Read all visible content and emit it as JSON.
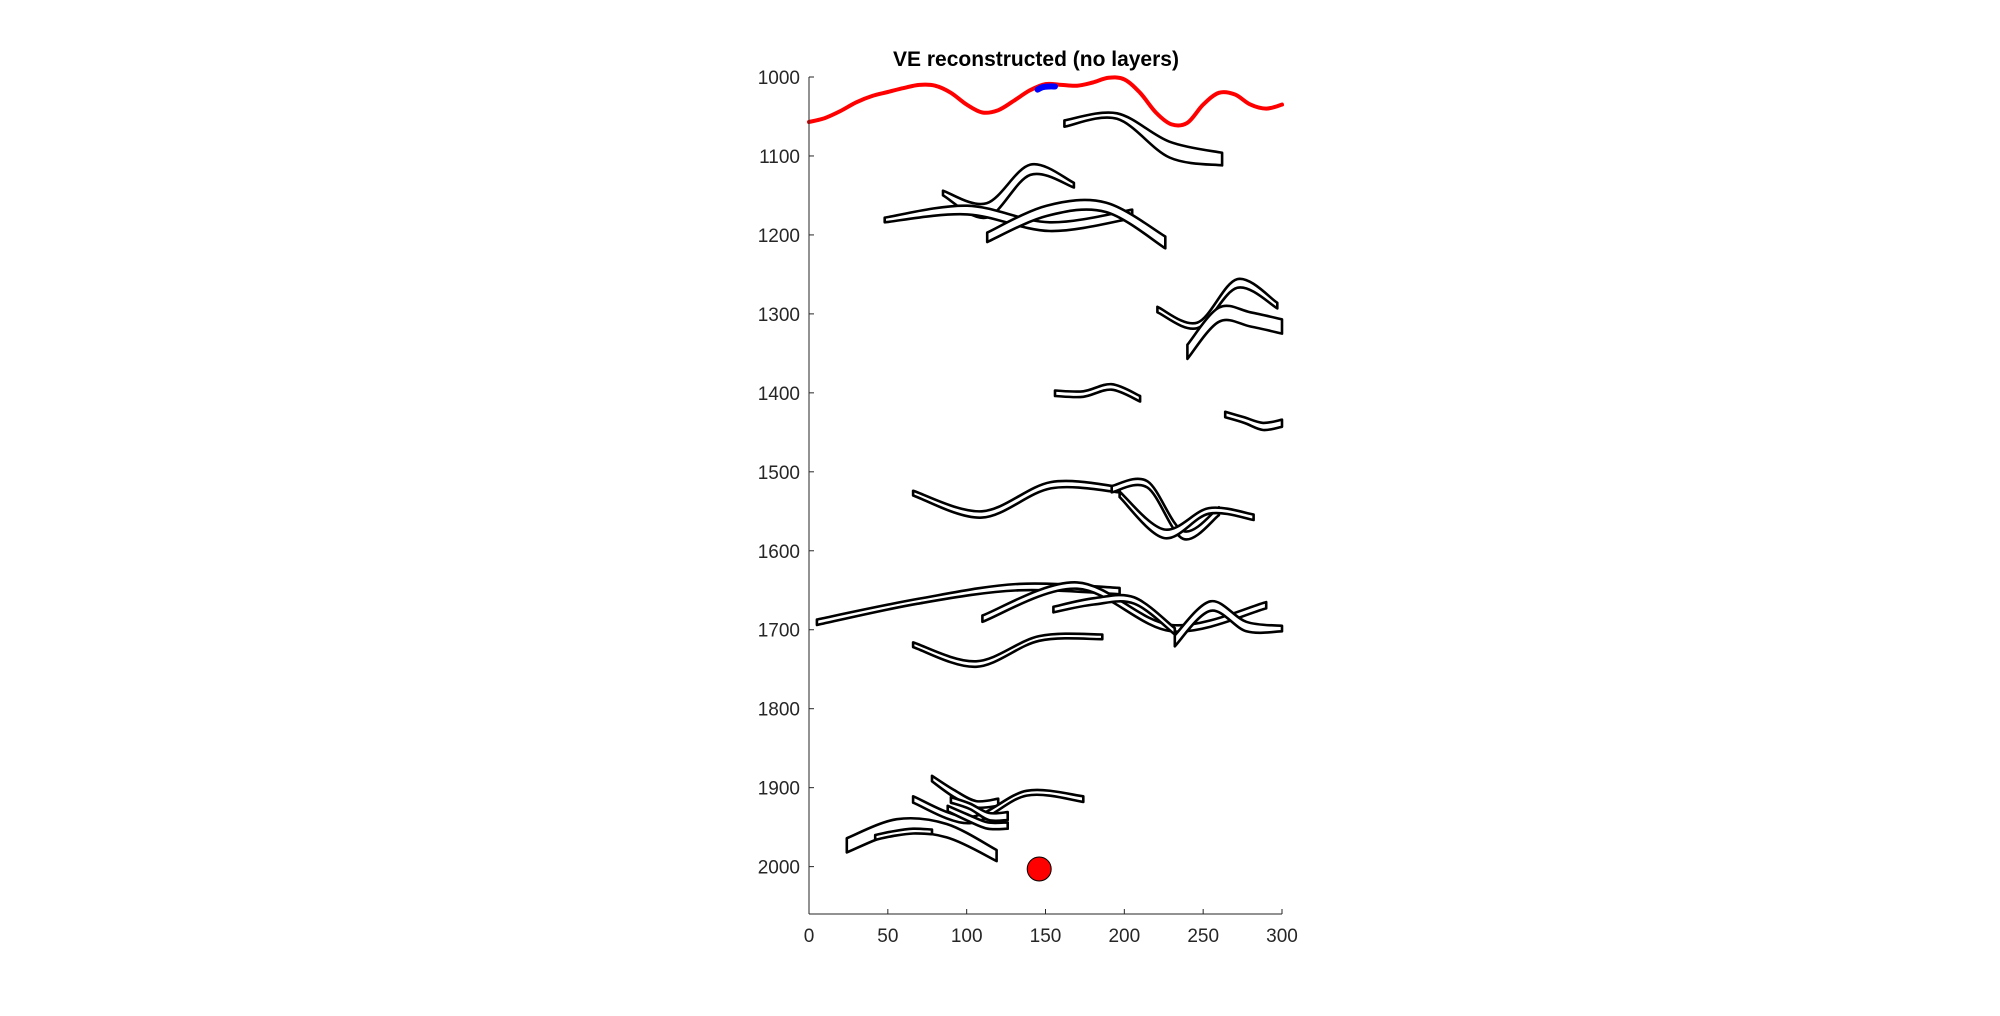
{
  "chart_data": {
    "type": "line",
    "title": "VE reconstructed (no layers)",
    "xlabel": "",
    "ylabel": "",
    "xlim": [
      0,
      300
    ],
    "ylim": [
      2060,
      1000
    ],
    "y_reversed": true,
    "xticks": [
      0,
      50,
      100,
      150,
      200,
      250,
      300
    ],
    "yticks": [
      1000,
      1100,
      1200,
      1300,
      1400,
      1500,
      1600,
      1700,
      1800,
      1900,
      2000
    ],
    "grid": false,
    "colors": {
      "surface": "#ff0000",
      "segment": "#0000ff",
      "outline": "#000000",
      "marker": "#ff0000"
    },
    "series": [
      {
        "name": "surface",
        "kind": "line",
        "x": [
          0,
          10,
          20,
          30,
          40,
          50,
          60,
          70,
          80,
          90,
          100,
          110,
          120,
          130,
          140,
          150,
          160,
          170,
          180,
          190,
          200,
          210,
          220,
          230,
          240,
          250,
          260,
          270,
          280,
          290,
          300
        ],
        "y": [
          1057,
          1052,
          1043,
          1032,
          1024,
          1019,
          1014,
          1010,
          1011,
          1020,
          1035,
          1045,
          1042,
          1030,
          1017,
          1009,
          1010,
          1011,
          1007,
          1001,
          1003,
          1020,
          1045,
          1060,
          1058,
          1035,
          1020,
          1022,
          1035,
          1040,
          1035
        ]
      },
      {
        "name": "short segment",
        "kind": "line",
        "x": [
          145,
          148,
          152,
          156
        ],
        "y": [
          1016,
          1013,
          1012,
          1012
        ]
      },
      {
        "name": "marker",
        "kind": "point",
        "x": [
          146
        ],
        "y": [
          2003
        ]
      }
    ],
    "bodies": [
      {
        "id": "b1",
        "x0": 162,
        "x1": 262,
        "y_top": [
          1055,
          1046,
          1082,
          1096
        ],
        "y_bot": [
          1063,
          1053,
          1102,
          1112
        ]
      },
      {
        "id": "b2",
        "x0": 85,
        "x1": 168,
        "y_top": [
          1144,
          1160,
          1111,
          1134
        ],
        "y_bot": [
          1150,
          1178,
          1124,
          1140
        ]
      },
      {
        "id": "b3",
        "x0": 48,
        "x1": 205,
        "y_top": [
          1178,
          1163,
          1184,
          1168
        ],
        "y_bot": [
          1184,
          1174,
          1195,
          1179
        ]
      },
      {
        "id": "b4",
        "x0": 113,
        "x1": 226,
        "y_top": [
          1197,
          1163,
          1159,
          1202
        ],
        "y_bot": [
          1209,
          1176,
          1171,
          1217
        ]
      },
      {
        "id": "b5",
        "x0": 221,
        "x1": 297,
        "y_top": [
          1291,
          1311,
          1256,
          1286
        ],
        "y_bot": [
          1298,
          1318,
          1267,
          1293
        ]
      },
      {
        "id": "b6",
        "x0": 240,
        "x1": 300,
        "y_top": [
          1339,
          1292,
          1298,
          1307
        ],
        "y_bot": [
          1357,
          1310,
          1316,
          1325
        ]
      },
      {
        "id": "b7",
        "x0": 156,
        "x1": 210,
        "y_top": [
          1397,
          1398,
          1389,
          1404
        ],
        "y_bot": [
          1404,
          1405,
          1396,
          1411
        ]
      },
      {
        "id": "b8",
        "x0": 264,
        "x1": 300,
        "y_top": [
          1424,
          1431,
          1438,
          1434
        ],
        "y_bot": [
          1431,
          1438,
          1447,
          1443
        ]
      },
      {
        "id": "b9",
        "x0": 66,
        "x1": 197,
        "y_top": [
          1524,
          1550,
          1513,
          1519
        ],
        "y_bot": [
          1530,
          1558,
          1521,
          1526
        ]
      },
      {
        "id": "b10",
        "x0": 192,
        "x1": 260,
        "y_top": [
          1518,
          1512,
          1575,
          1545
        ],
        "y_bot": [
          1526,
          1520,
          1585,
          1555
        ]
      },
      {
        "id": "b11",
        "x0": 197,
        "x1": 282,
        "y_top": [
          1525,
          1573,
          1546,
          1554
        ],
        "y_bot": [
          1532,
          1584,
          1553,
          1561
        ]
      },
      {
        "id": "b12",
        "x0": 5,
        "x1": 197,
        "y_top": [
          1687,
          1661,
          1642,
          1647
        ],
        "y_bot": [
          1694,
          1667,
          1650,
          1655
        ]
      },
      {
        "id": "b13",
        "x0": 110,
        "x1": 290,
        "y_top": [
          1682,
          1640,
          1694,
          1665
        ],
        "y_bot": [
          1690,
          1648,
          1702,
          1673
        ]
      },
      {
        "id": "b14",
        "x0": 155,
        "x1": 232,
        "y_top": [
          1671,
          1660,
          1659,
          1698
        ],
        "y_bot": [
          1678,
          1668,
          1667,
          1706
        ]
      },
      {
        "id": "b15",
        "x0": 232,
        "x1": 300,
        "y_top": [
          1707,
          1664,
          1690,
          1695
        ],
        "y_bot": [
          1721,
          1676,
          1702,
          1702
        ]
      },
      {
        "id": "b16",
        "x0": 66,
        "x1": 186,
        "y_top": [
          1716,
          1740,
          1708,
          1706
        ],
        "y_bot": [
          1722,
          1747,
          1714,
          1712
        ]
      },
      {
        "id": "b17",
        "x0": 78,
        "x1": 120,
        "y_top": [
          1885,
          1903,
          1917,
          1914
        ],
        "y_bot": [
          1892,
          1912,
          1925,
          1923
        ]
      },
      {
        "id": "b18",
        "x0": 66,
        "x1": 174,
        "y_top": [
          1911,
          1937,
          1904,
          1911
        ],
        "y_bot": [
          1919,
          1945,
          1910,
          1918
        ]
      },
      {
        "id": "b19",
        "x0": 90,
        "x1": 126,
        "y_top": [
          1912,
          1920,
          1932,
          1931
        ],
        "y_bot": [
          1919,
          1927,
          1941,
          1941
        ]
      },
      {
        "id": "b20",
        "x0": 88,
        "x1": 126,
        "y_top": [
          1923,
          1934,
          1944,
          1944
        ],
        "y_bot": [
          1930,
          1942,
          1952,
          1952
        ]
      },
      {
        "id": "b21",
        "x0": 24,
        "x1": 119,
        "y_top": [
          1964,
          1940,
          1946,
          1979
        ],
        "y_bot": [
          1982,
          1958,
          1963,
          1993
        ]
      },
      {
        "id": "b22",
        "x0": 42,
        "x1": 78,
        "y_top": [
          1960,
          1955,
          1952,
          1953
        ],
        "y_bot": [
          1966,
          1961,
          1958,
          1959
        ]
      }
    ]
  }
}
